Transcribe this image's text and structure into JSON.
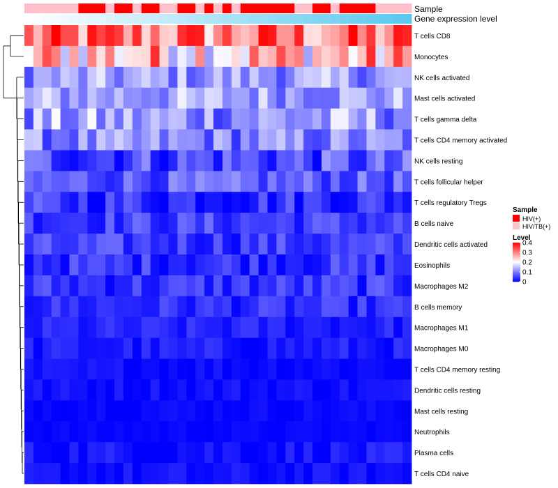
{
  "chart_data": {
    "type": "heatmap",
    "title": "",
    "annotations": [
      {
        "name": "Sample",
        "key": "sample"
      },
      {
        "name": "Gene expression level",
        "key": "expr"
      }
    ],
    "rows": [
      "T cells CD8",
      "Monocytes",
      "NK cells activated",
      "Mast cells activated",
      "T cells gamma delta",
      "T cells CD4 memory activated",
      "NK cells resting",
      "T cells follicular helper",
      "T cells regulatory  Tregs",
      "B cells naive",
      "Dendritic cells activated",
      "Eosinophils",
      "Macrophages M2",
      "B cells memory",
      "Macrophages M1",
      "Macrophages M0",
      "T cells CD4 memory resting",
      "Dendritic cells resting",
      "Mast cells resting",
      "Neutrophils",
      "Plasma cells",
      "T cells CD4 naive"
    ],
    "n_columns": 43,
    "sample_groups": [
      "HIV/TB(+)",
      "HIV/TB(+)",
      "HIV/TB(+)",
      "HIV/TB(+)",
      "HIV/TB(+)",
      "HIV/TB(+)",
      "HIV(+)",
      "HIV(+)",
      "HIV(+)",
      "HIV/TB(+)",
      "HIV(+)",
      "HIV(+)",
      "HIV/TB(+)",
      "HIV(+)",
      "HIV(+)",
      "HIV/TB(+)",
      "HIV/TB(+)",
      "HIV(+)",
      "HIV(+)",
      "HIV/TB(+)",
      "HIV(+)",
      "HIV/TB(+)",
      "HIV(+)",
      "HIV/TB(+)",
      "HIV(+)",
      "HIV(+)",
      "HIV(+)",
      "HIV(+)",
      "HIV(+)",
      "HIV(+)",
      "HIV/TB(+)",
      "HIV/TB(+)",
      "HIV(+)",
      "HIV(+)",
      "HIV/TB(+)",
      "HIV(+)",
      "HIV(+)",
      "HIV(+)",
      "HIV(+)",
      "HIV/TB(+)",
      "HIV/TB(+)",
      "HIV/TB(+)",
      "HIV/TB(+)"
    ],
    "expression_level_trend": "increasing",
    "row_profiles": [
      [
        0.3,
        0.07
      ],
      [
        0.25,
        0.08
      ],
      [
        0.12,
        0.04
      ],
      [
        0.13,
        0.04
      ],
      [
        0.12,
        0.05
      ],
      [
        0.1,
        0.04
      ],
      [
        0.06,
        0.04
      ],
      [
        0.07,
        0.03
      ],
      [
        0.04,
        0.03
      ],
      [
        0.05,
        0.025
      ],
      [
        0.045,
        0.025
      ],
      [
        0.04,
        0.025
      ],
      [
        0.04,
        0.025
      ],
      [
        0.035,
        0.02
      ],
      [
        0.025,
        0.015
      ],
      [
        0.02,
        0.015
      ],
      [
        0.01,
        0.01
      ],
      [
        0.012,
        0.01
      ],
      [
        0.008,
        0.006
      ],
      [
        0.005,
        0.004
      ],
      [
        0.015,
        0.015
      ],
      [
        0.01,
        0.012
      ]
    ],
    "value_range": [
      0,
      0.4
    ],
    "dendrogram": "rows",
    "legends": {
      "sample": {
        "title": "Sample",
        "entries": [
          {
            "label": "HIV(+)",
            "color": "#ff0000"
          },
          {
            "label": "HIV/TB(+)",
            "color": "#ffc0cb"
          }
        ]
      },
      "level": {
        "title": "Level",
        "ticks": [
          {
            "value": 0.4,
            "label": "0.4"
          },
          {
            "value": 0.3,
            "label": "0.3"
          },
          {
            "value": 0.2,
            "label": "0.2"
          },
          {
            "value": 0.1,
            "label": "0.1"
          },
          {
            "value": 0,
            "label": "0"
          }
        ],
        "color_low": "#0000ff",
        "color_mid": "#ffffff",
        "color_high": "#ff0000",
        "mid_value": 0.2
      }
    },
    "expr_color_low": "#ffffff",
    "expr_color_high": "#5ac8f0"
  }
}
